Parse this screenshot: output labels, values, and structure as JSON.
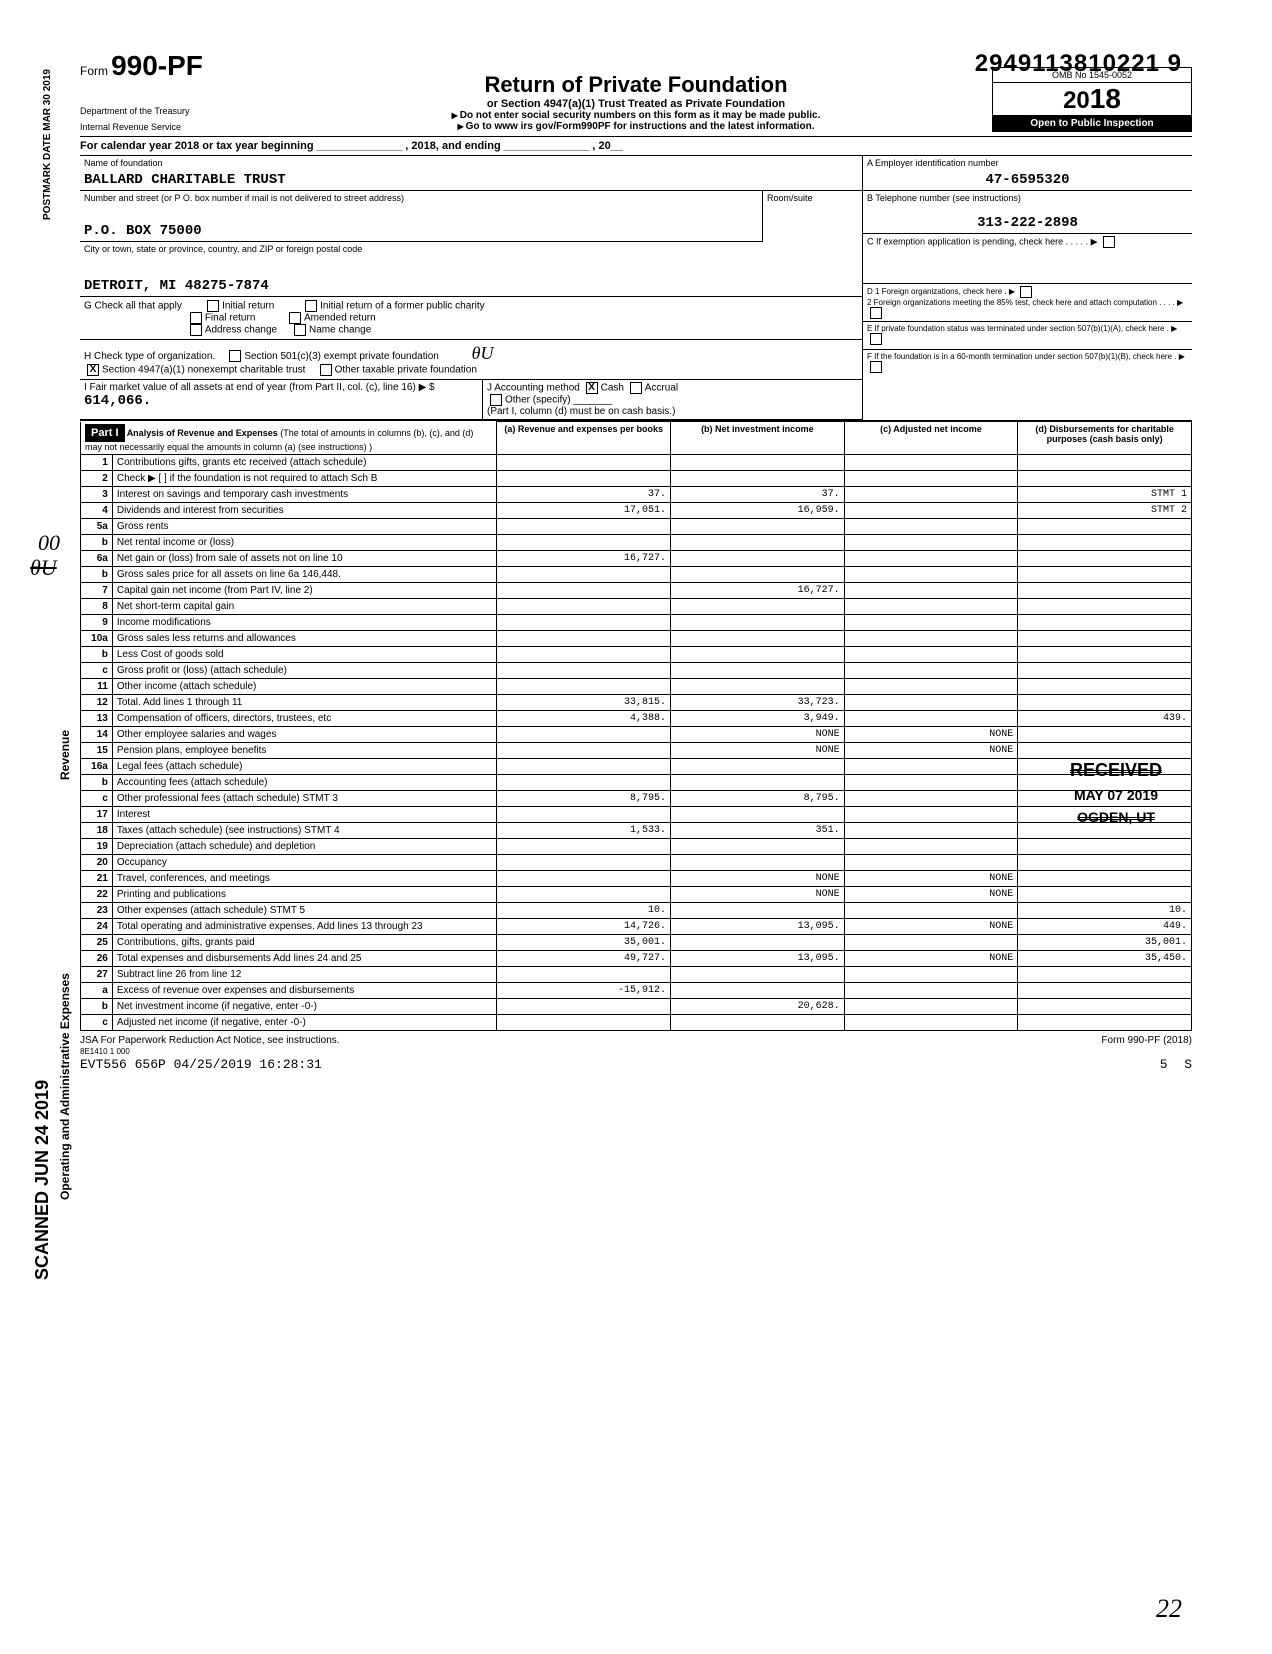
{
  "top_code": "2949113810221 9",
  "form": {
    "prefix": "Form",
    "number": "990-PF",
    "dept1": "Department of the Treasury",
    "dept2": "Internal Revenue Service",
    "title": "Return of Private Foundation",
    "subtitle": "or Section 4947(a)(1) Trust Treated as Private Foundation",
    "warn": "Do not enter social security numbers on this form as it may be made public.",
    "goto": "Go to www irs gov/Form990PF for instructions and the latest information.",
    "omb": "OMB No 1545-0052",
    "year_outer": "20",
    "year_inner": "18",
    "open": "Open to Public Inspection"
  },
  "calyear": "For calendar year 2018 or tax year beginning ______________ , 2018, and ending ______________ , 20__",
  "foundation": {
    "name_label": "Name of foundation",
    "name": "BALLARD CHARITABLE TRUST",
    "street_label": "Number and street (or P O. box number if mail is not delivered to street address)",
    "street": "P.O. BOX 75000",
    "room_label": "Room/suite",
    "city_label": "City or town, state or province, country, and ZIP or foreign postal code",
    "city": "DETROIT, MI 48275-7874",
    "ein_label": "A  Employer identification number",
    "ein": "47-6595320",
    "phone_label": "B  Telephone number (see instructions)",
    "phone": "313-222-2898",
    "c_label": "C  If exemption application is pending, check here",
    "d1": "D  1  Foreign organizations, check here",
    "d2": "2  Foreign organizations meeting the 85% test, check here and attach computation",
    "e_label": "E  If private foundation status was terminated under section 507(b)(1)(A), check here",
    "f_label": "F  If the foundation is in a 60-month termination under section 507(b)(1)(B), check here"
  },
  "g": {
    "label": "G  Check all that apply",
    "initial": "Initial return",
    "initial_former": "Initial return of a former public charity",
    "final": "Final return",
    "amended": "Amended return",
    "address": "Address change",
    "name_change": "Name change"
  },
  "h": {
    "label": "H  Check type of organization.",
    "501c3": "Section 501(c)(3) exempt private foundation",
    "4947": "Section 4947(a)(1) nonexempt charitable trust",
    "other_tax": "Other taxable private foundation",
    "checked": "X"
  },
  "i": {
    "label": "I  Fair market value of all assets at end of year (from Part II, col. (c), line 16) ▶ $",
    "value": "614,066."
  },
  "j": {
    "label": "J Accounting method",
    "cash": "Cash",
    "cash_check": "X",
    "accrual": "Accrual",
    "other": "Other (specify)",
    "note": "(Part I, column (d) must be on cash basis.)"
  },
  "part1": {
    "label": "Part I",
    "title": "Analysis of Revenue and Expenses",
    "sub": "(The total of amounts in columns (b), (c), and (d) may not necessarily equal the amounts in column (a) (see instructions) )",
    "col_a": "(a) Revenue and expenses per books",
    "col_b": "(b) Net investment income",
    "col_c": "(c) Adjusted net income",
    "col_d": "(d) Disbursements for charitable purposes (cash basis only)"
  },
  "rows": [
    {
      "n": "1",
      "d": "Contributions gifts, grants etc received (attach schedule)",
      "a": "",
      "b": "",
      "c": "",
      "dd": ""
    },
    {
      "n": "2",
      "d": "Check ▶ [ ] if the foundation is not required to attach Sch B",
      "a": "",
      "b": "",
      "c": "",
      "dd": ""
    },
    {
      "n": "3",
      "d": "Interest on savings and temporary cash investments",
      "a": "37.",
      "b": "37.",
      "c": "",
      "dd": "STMT 1"
    },
    {
      "n": "4",
      "d": "Dividends and interest from securities",
      "a": "17,051.",
      "b": "16,959.",
      "c": "",
      "dd": "STMT 2"
    },
    {
      "n": "5a",
      "d": "Gross rents",
      "a": "",
      "b": "",
      "c": "",
      "dd": ""
    },
    {
      "n": "b",
      "d": "Net rental income or (loss)",
      "a": "",
      "b": "",
      "c": "",
      "dd": ""
    },
    {
      "n": "6a",
      "d": "Net gain or (loss) from sale of assets not on line 10",
      "a": "16,727.",
      "b": "",
      "c": "",
      "dd": ""
    },
    {
      "n": "b",
      "d": "Gross sales price for all assets on line 6a     146,448.",
      "a": "",
      "b": "",
      "c": "",
      "dd": ""
    },
    {
      "n": "7",
      "d": "Capital gain net income (from Part IV, line 2)",
      "a": "",
      "b": "16,727.",
      "c": "",
      "dd": ""
    },
    {
      "n": "8",
      "d": "Net short-term capital gain",
      "a": "",
      "b": "",
      "c": "",
      "dd": ""
    },
    {
      "n": "9",
      "d": "Income modifications",
      "a": "",
      "b": "",
      "c": "",
      "dd": ""
    },
    {
      "n": "10a",
      "d": "Gross sales less returns and allowances",
      "a": "",
      "b": "",
      "c": "",
      "dd": ""
    },
    {
      "n": "b",
      "d": "Less Cost of goods sold",
      "a": "",
      "b": "",
      "c": "",
      "dd": ""
    },
    {
      "n": "c",
      "d": "Gross profit or (loss) (attach schedule)",
      "a": "",
      "b": "",
      "c": "",
      "dd": ""
    },
    {
      "n": "11",
      "d": "Other income (attach schedule)",
      "a": "",
      "b": "",
      "c": "",
      "dd": ""
    },
    {
      "n": "12",
      "d": "Total. Add lines 1 through 11",
      "a": "33,815.",
      "b": "33,723.",
      "c": "",
      "dd": ""
    },
    {
      "n": "13",
      "d": "Compensation of officers, directors, trustees, etc",
      "a": "4,388.",
      "b": "3,949.",
      "c": "",
      "dd": "439."
    },
    {
      "n": "14",
      "d": "Other employee salaries and wages",
      "a": "",
      "b": "NONE",
      "c": "NONE",
      "dd": ""
    },
    {
      "n": "15",
      "d": "Pension plans, employee benefits",
      "a": "",
      "b": "NONE",
      "c": "NONE",
      "dd": ""
    },
    {
      "n": "16a",
      "d": "Legal fees (attach schedule)",
      "a": "",
      "b": "",
      "c": "",
      "dd": ""
    },
    {
      "n": "b",
      "d": "Accounting fees (attach schedule)",
      "a": "",
      "b": "",
      "c": "",
      "dd": ""
    },
    {
      "n": "c",
      "d": "Other professional fees (attach schedule) STMT 3",
      "a": "8,795.",
      "b": "8,795.",
      "c": "",
      "dd": ""
    },
    {
      "n": "17",
      "d": "Interest",
      "a": "",
      "b": "",
      "c": "",
      "dd": ""
    },
    {
      "n": "18",
      "d": "Taxes (attach schedule) (see instructions) STMT 4",
      "a": "1,533.",
      "b": "351.",
      "c": "",
      "dd": ""
    },
    {
      "n": "19",
      "d": "Depreciation (attach schedule) and depletion",
      "a": "",
      "b": "",
      "c": "",
      "dd": ""
    },
    {
      "n": "20",
      "d": "Occupancy",
      "a": "",
      "b": "",
      "c": "",
      "dd": ""
    },
    {
      "n": "21",
      "d": "Travel, conferences, and meetings",
      "a": "",
      "b": "NONE",
      "c": "NONE",
      "dd": ""
    },
    {
      "n": "22",
      "d": "Printing and publications",
      "a": "",
      "b": "NONE",
      "c": "NONE",
      "dd": ""
    },
    {
      "n": "23",
      "d": "Other expenses (attach schedule) STMT 5",
      "a": "10.",
      "b": "",
      "c": "",
      "dd": "10."
    },
    {
      "n": "24",
      "d": "Total operating and administrative expenses. Add lines 13 through 23",
      "a": "14,726.",
      "b": "13,095.",
      "c": "NONE",
      "dd": "449."
    },
    {
      "n": "25",
      "d": "Contributions, gifts, grants paid",
      "a": "35,001.",
      "b": "",
      "c": "",
      "dd": "35,001."
    },
    {
      "n": "26",
      "d": "Total expenses and disbursements Add lines 24 and 25",
      "a": "49,727.",
      "b": "13,095.",
      "c": "NONE",
      "dd": "35,450."
    },
    {
      "n": "27",
      "d": "Subtract line 26 from line 12",
      "a": "",
      "b": "",
      "c": "",
      "dd": ""
    },
    {
      "n": "a",
      "d": "Excess of revenue over expenses and disbursements",
      "a": "-15,912.",
      "b": "",
      "c": "",
      "dd": ""
    },
    {
      "n": "b",
      "d": "Net investment income (if negative, enter -0-)",
      "a": "",
      "b": "20,628.",
      "c": "",
      "dd": ""
    },
    {
      "n": "c",
      "d": "Adjusted net income (if negative, enter -0-)",
      "a": "",
      "b": "",
      "c": "",
      "dd": ""
    }
  ],
  "footer": {
    "left": "JSA For Paperwork Reduction Act Notice, see instructions.",
    "code": "8E1410 1 000",
    "stamp": "EVT556 656P 04/25/2019 16:28:31",
    "right": "Form 990-PF (2018)",
    "p5": "5",
    "ps": "S"
  },
  "stamps": {
    "postmark": "POSTMARK DATE MAR 30 2019",
    "scanned": "SCANNED JUN 24 2019",
    "received": "RECEIVED",
    "received_date": "MAY 07 2019",
    "received_loc": "OGDEN, UT",
    "hand_ou": "θU",
    "hand_nums": "00",
    "hand_22": "22"
  }
}
